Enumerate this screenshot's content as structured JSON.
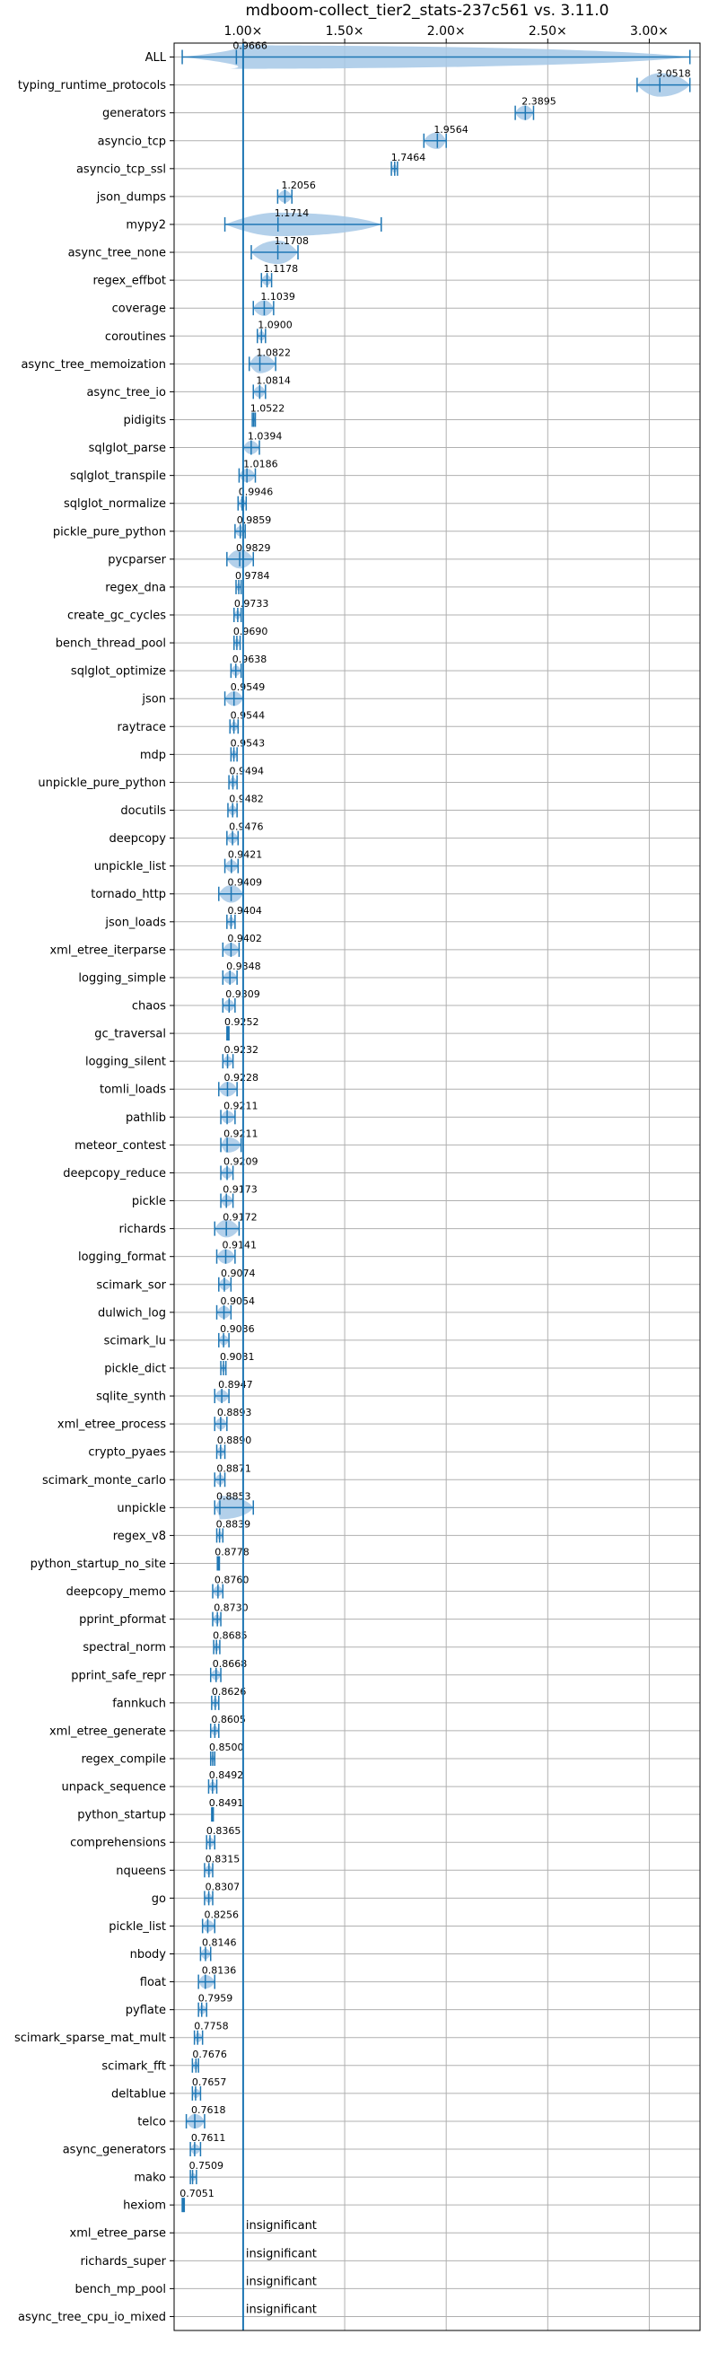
{
  "chart_data": {
    "type": "violin",
    "title": "mdboom-collect_tier2_stats-237c561 vs. 3.11.0",
    "xlabel": "",
    "ylabel": "",
    "xlim": [
      0.66,
      3.25
    ],
    "x_ticks": [
      1.0,
      1.5,
      2.0,
      2.5,
      3.0
    ],
    "x_tick_labels": [
      "1.00×",
      "1.50×",
      "2.00×",
      "2.50×",
      "3.00×"
    ],
    "x_axis_position": "top",
    "grid": true,
    "reference_line": 1.0,
    "colors": {
      "violin": "#a6c8e6",
      "line": "#1f77b4",
      "grid": "#b0b0b0"
    },
    "benchmarks": [
      {
        "name": "ALL",
        "value": 0.9666,
        "label": "0.9666",
        "lo": 0.7,
        "hi": 3.2
      },
      {
        "name": "typing_runtime_protocols",
        "value": 3.0518,
        "label": "3.0518",
        "lo": 2.94,
        "hi": 3.2
      },
      {
        "name": "generators",
        "value": 2.3895,
        "label": "2.3895",
        "lo": 2.34,
        "hi": 2.43
      },
      {
        "name": "asyncio_tcp",
        "value": 1.9564,
        "label": "1.9564",
        "lo": 1.89,
        "hi": 2.0
      },
      {
        "name": "asyncio_tcp_ssl",
        "value": 1.7464,
        "label": "1.7464",
        "lo": 1.73,
        "hi": 1.76
      },
      {
        "name": "json_dumps",
        "value": 1.2056,
        "label": "1.2056",
        "lo": 1.17,
        "hi": 1.24
      },
      {
        "name": "mypy2",
        "value": 1.1714,
        "label": "1.1714",
        "lo": 0.91,
        "hi": 1.68
      },
      {
        "name": "async_tree_none",
        "value": 1.1708,
        "label": "1.1708",
        "lo": 1.04,
        "hi": 1.27
      },
      {
        "name": "regex_effbot",
        "value": 1.1178,
        "label": "1.1178",
        "lo": 1.09,
        "hi": 1.14
      },
      {
        "name": "coverage",
        "value": 1.1039,
        "label": "1.1039",
        "lo": 1.05,
        "hi": 1.15
      },
      {
        "name": "coroutines",
        "value": 1.09,
        "label": "1.0900",
        "lo": 1.07,
        "hi": 1.11
      },
      {
        "name": "async_tree_memoization",
        "value": 1.0822,
        "label": "1.0822",
        "lo": 1.03,
        "hi": 1.16
      },
      {
        "name": "async_tree_io",
        "value": 1.0814,
        "label": "1.0814",
        "lo": 1.05,
        "hi": 1.11
      },
      {
        "name": "pidigits",
        "value": 1.0522,
        "label": "1.0522",
        "lo": 1.045,
        "hi": 1.06
      },
      {
        "name": "sqlglot_parse",
        "value": 1.0394,
        "label": "1.0394",
        "lo": 1.0,
        "hi": 1.08
      },
      {
        "name": "sqlglot_transpile",
        "value": 1.0186,
        "label": "1.0186",
        "lo": 0.98,
        "hi": 1.06
      },
      {
        "name": "sqlglot_normalize",
        "value": 0.9946,
        "label": "0.9946",
        "lo": 0.975,
        "hi": 1.015
      },
      {
        "name": "pickle_pure_python",
        "value": 0.9859,
        "label": "0.9859",
        "lo": 0.96,
        "hi": 1.01
      },
      {
        "name": "pycparser",
        "value": 0.9829,
        "label": "0.9829",
        "lo": 0.92,
        "hi": 1.05
      },
      {
        "name": "regex_dna",
        "value": 0.9784,
        "label": "0.9784",
        "lo": 0.965,
        "hi": 0.99
      },
      {
        "name": "create_gc_cycles",
        "value": 0.9733,
        "label": "0.9733",
        "lo": 0.955,
        "hi": 0.99
      },
      {
        "name": "bench_thread_pool",
        "value": 0.969,
        "label": "0.9690",
        "lo": 0.955,
        "hi": 0.985
      },
      {
        "name": "sqlglot_optimize",
        "value": 0.9638,
        "label": "0.9638",
        "lo": 0.94,
        "hi": 0.99
      },
      {
        "name": "json",
        "value": 0.9549,
        "label": "0.9549",
        "lo": 0.91,
        "hi": 1.0
      },
      {
        "name": "raytrace",
        "value": 0.9544,
        "label": "0.9544",
        "lo": 0.935,
        "hi": 0.975
      },
      {
        "name": "mdp",
        "value": 0.9543,
        "label": "0.9543",
        "lo": 0.94,
        "hi": 0.97
      },
      {
        "name": "unpickle_pure_python",
        "value": 0.9494,
        "label": "0.9494",
        "lo": 0.93,
        "hi": 0.97
      },
      {
        "name": "docutils",
        "value": 0.9482,
        "label": "0.9482",
        "lo": 0.925,
        "hi": 0.97
      },
      {
        "name": "deepcopy",
        "value": 0.9476,
        "label": "0.9476",
        "lo": 0.92,
        "hi": 0.975
      },
      {
        "name": "unpickle_list",
        "value": 0.9421,
        "label": "0.9421",
        "lo": 0.91,
        "hi": 0.975
      },
      {
        "name": "tornado_http",
        "value": 0.9409,
        "label": "0.9409",
        "lo": 0.88,
        "hi": 1.0
      },
      {
        "name": "json_loads",
        "value": 0.9404,
        "label": "0.9404",
        "lo": 0.92,
        "hi": 0.96
      },
      {
        "name": "xml_etree_iterparse",
        "value": 0.9402,
        "label": "0.9402",
        "lo": 0.9,
        "hi": 0.98
      },
      {
        "name": "logging_simple",
        "value": 0.9348,
        "label": "0.9348",
        "lo": 0.9,
        "hi": 0.97
      },
      {
        "name": "chaos",
        "value": 0.9309,
        "label": "0.9309",
        "lo": 0.9,
        "hi": 0.96
      },
      {
        "name": "gc_traversal",
        "value": 0.9252,
        "label": "0.9252",
        "lo": 0.92,
        "hi": 0.93
      },
      {
        "name": "logging_silent",
        "value": 0.9232,
        "label": "0.9232",
        "lo": 0.9,
        "hi": 0.95
      },
      {
        "name": "tomli_loads",
        "value": 0.9228,
        "label": "0.9228",
        "lo": 0.88,
        "hi": 0.97
      },
      {
        "name": "pathlib",
        "value": 0.9211,
        "label": "0.9211",
        "lo": 0.89,
        "hi": 0.96
      },
      {
        "name": "meteor_contest",
        "value": 0.9211,
        "label": "0.9211",
        "lo": 0.89,
        "hi": 0.99
      },
      {
        "name": "deepcopy_reduce",
        "value": 0.9209,
        "label": "0.9209",
        "lo": 0.89,
        "hi": 0.95
      },
      {
        "name": "pickle",
        "value": 0.9173,
        "label": "0.9173",
        "lo": 0.89,
        "hi": 0.95
      },
      {
        "name": "richards",
        "value": 0.9172,
        "label": "0.9172",
        "lo": 0.86,
        "hi": 0.98
      },
      {
        "name": "logging_format",
        "value": 0.9141,
        "label": "0.9141",
        "lo": 0.87,
        "hi": 0.96
      },
      {
        "name": "scimark_sor",
        "value": 0.9074,
        "label": "0.9074",
        "lo": 0.88,
        "hi": 0.94
      },
      {
        "name": "dulwich_log",
        "value": 0.9054,
        "label": "0.9054",
        "lo": 0.87,
        "hi": 0.94
      },
      {
        "name": "scimark_lu",
        "value": 0.9036,
        "label": "0.9036",
        "lo": 0.88,
        "hi": 0.93
      },
      {
        "name": "pickle_dict",
        "value": 0.9031,
        "label": "0.9031",
        "lo": 0.89,
        "hi": 0.915
      },
      {
        "name": "sqlite_synth",
        "value": 0.8947,
        "label": "0.8947",
        "lo": 0.86,
        "hi": 0.93
      },
      {
        "name": "xml_etree_process",
        "value": 0.8893,
        "label": "0.8893",
        "lo": 0.86,
        "hi": 0.92
      },
      {
        "name": "crypto_pyaes",
        "value": 0.889,
        "label": "0.8890",
        "lo": 0.87,
        "hi": 0.91
      },
      {
        "name": "scimark_monte_carlo",
        "value": 0.8871,
        "label": "0.8871",
        "lo": 0.86,
        "hi": 0.91
      },
      {
        "name": "unpickle",
        "value": 0.8853,
        "label": "0.8853",
        "lo": 0.86,
        "hi": 1.05
      },
      {
        "name": "regex_v8",
        "value": 0.8839,
        "label": "0.8839",
        "lo": 0.87,
        "hi": 0.9
      },
      {
        "name": "python_startup_no_site",
        "value": 0.8778,
        "label": "0.8778",
        "lo": 0.873,
        "hi": 0.883
      },
      {
        "name": "deepcopy_memo",
        "value": 0.876,
        "label": "0.8760",
        "lo": 0.85,
        "hi": 0.9
      },
      {
        "name": "pprint_pformat",
        "value": 0.873,
        "label": "0.8730",
        "lo": 0.85,
        "hi": 0.89
      },
      {
        "name": "spectral_norm",
        "value": 0.8685,
        "label": "0.8685",
        "lo": 0.855,
        "hi": 0.885
      },
      {
        "name": "pprint_safe_repr",
        "value": 0.8668,
        "label": "0.8668",
        "lo": 0.84,
        "hi": 0.89
      },
      {
        "name": "fannkuch",
        "value": 0.8626,
        "label": "0.8626",
        "lo": 0.845,
        "hi": 0.88
      },
      {
        "name": "xml_etree_generate",
        "value": 0.8605,
        "label": "0.8605",
        "lo": 0.84,
        "hi": 0.88
      },
      {
        "name": "regex_compile",
        "value": 0.85,
        "label": "0.8500",
        "lo": 0.84,
        "hi": 0.86
      },
      {
        "name": "unpack_sequence",
        "value": 0.8492,
        "label": "0.8492",
        "lo": 0.83,
        "hi": 0.87
      },
      {
        "name": "python_startup",
        "value": 0.8491,
        "label": "0.8491",
        "lo": 0.845,
        "hi": 0.853
      },
      {
        "name": "comprehensions",
        "value": 0.8365,
        "label": "0.8365",
        "lo": 0.82,
        "hi": 0.86
      },
      {
        "name": "nqueens",
        "value": 0.8315,
        "label": "0.8315",
        "lo": 0.81,
        "hi": 0.85
      },
      {
        "name": "go",
        "value": 0.8307,
        "label": "0.8307",
        "lo": 0.81,
        "hi": 0.85
      },
      {
        "name": "pickle_list",
        "value": 0.8256,
        "label": "0.8256",
        "lo": 0.8,
        "hi": 0.86
      },
      {
        "name": "nbody",
        "value": 0.8146,
        "label": "0.8146",
        "lo": 0.79,
        "hi": 0.84
      },
      {
        "name": "float",
        "value": 0.8136,
        "label": "0.8136",
        "lo": 0.78,
        "hi": 0.86
      },
      {
        "name": "pyflate",
        "value": 0.7959,
        "label": "0.7959",
        "lo": 0.78,
        "hi": 0.82
      },
      {
        "name": "scimark_sparse_mat_mult",
        "value": 0.7758,
        "label": "0.7758",
        "lo": 0.76,
        "hi": 0.8
      },
      {
        "name": "scimark_fft",
        "value": 0.7676,
        "label": "0.7676",
        "lo": 0.75,
        "hi": 0.78
      },
      {
        "name": "deltablue",
        "value": 0.7657,
        "label": "0.7657",
        "lo": 0.75,
        "hi": 0.79
      },
      {
        "name": "telco",
        "value": 0.7618,
        "label": "0.7618",
        "lo": 0.72,
        "hi": 0.81
      },
      {
        "name": "async_generators",
        "value": 0.7611,
        "label": "0.7611",
        "lo": 0.74,
        "hi": 0.79
      },
      {
        "name": "mako",
        "value": 0.7509,
        "label": "0.7509",
        "lo": 0.74,
        "hi": 0.77
      },
      {
        "name": "hexiom",
        "value": 0.7051,
        "label": "0.7051",
        "lo": 0.7,
        "hi": 0.71
      },
      {
        "name": "xml_etree_parse",
        "value": null,
        "label": "insignificant"
      },
      {
        "name": "richards_super",
        "value": null,
        "label": "insignificant"
      },
      {
        "name": "bench_mp_pool",
        "value": null,
        "label": "insignificant"
      },
      {
        "name": "async_tree_cpu_io_mixed",
        "value": null,
        "label": "insignificant"
      }
    ]
  }
}
